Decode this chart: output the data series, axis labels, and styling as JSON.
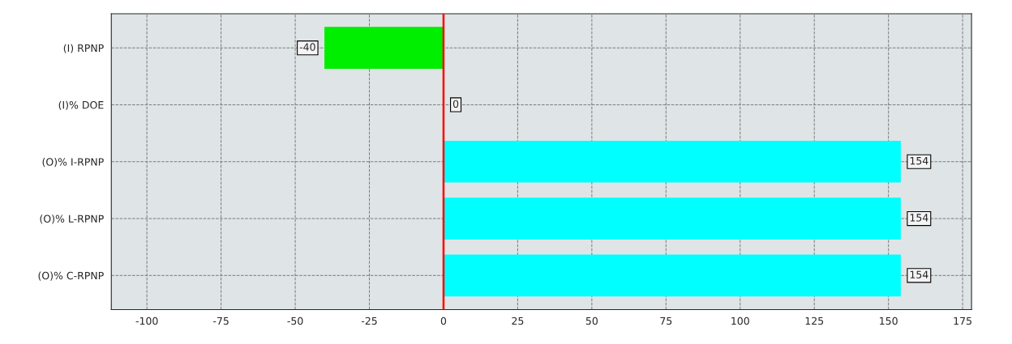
{
  "chart_data": {
    "type": "bar",
    "orientation": "horizontal",
    "categories": [
      "(I) RPNP",
      "(I)% DOE",
      "(O)% I-RPNP",
      "(O)% L-RPNP",
      "(O)% C-RPNP"
    ],
    "values": [
      -40,
      0,
      154,
      154,
      154
    ],
    "colors": [
      "#00ee00",
      "#00ee00",
      "#00ffff",
      "#00ffff",
      "#00ffff"
    ],
    "xlim": [
      -112,
      178
    ],
    "xticks": [
      -100,
      -75,
      -50,
      -25,
      0,
      25,
      50,
      75,
      100,
      125,
      150,
      175
    ],
    "ref_lines": [
      {
        "axis": "x",
        "value": 0,
        "color": "#ff0000",
        "line_style": "solid"
      }
    ],
    "grid": true,
    "data_labels": true
  }
}
